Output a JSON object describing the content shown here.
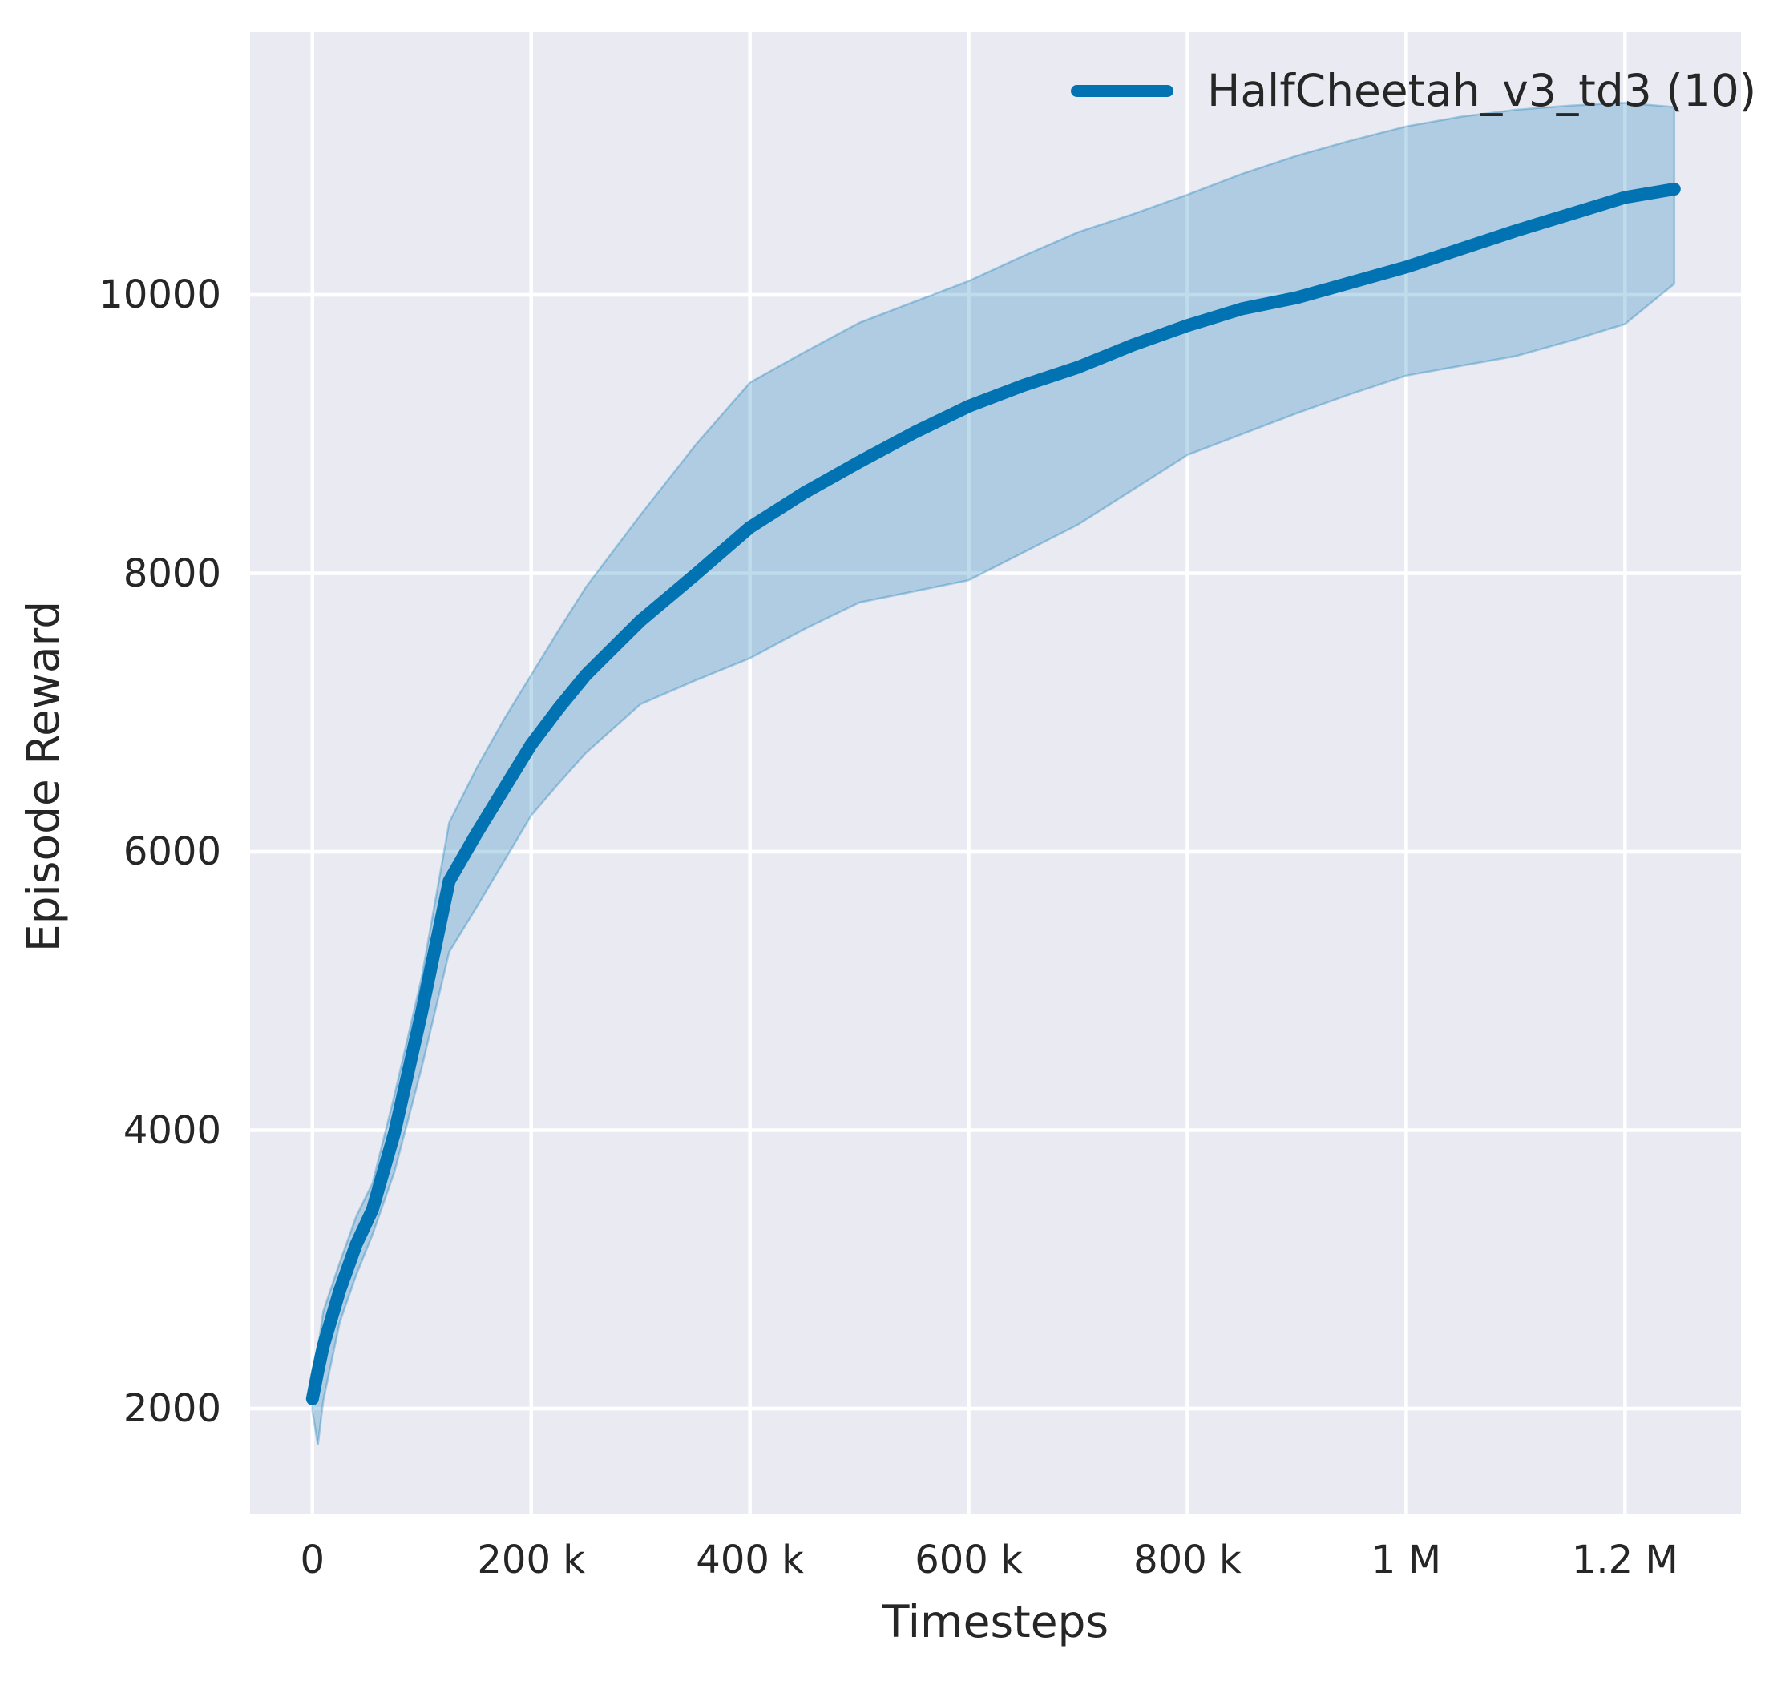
{
  "style": {
    "figure_bg": "#ffffff",
    "plot_bg": "#eaeaf2",
    "grid_color": "#ffffff",
    "text_color": "#262626",
    "line_color": "#0173b2",
    "band_fill": "rgba(1,115,178,0.25)",
    "band_edge": "rgba(1,115,178,0.30)"
  },
  "legend": {
    "label": "HalfCheetah_v3_td3 (10)"
  },
  "chart_data": {
    "type": "line",
    "title": "",
    "xlabel": "Timesteps",
    "ylabel": "Episode Reward",
    "grid": true,
    "legend_position": "upper right",
    "xlim": [
      -57000,
      1306000
    ],
    "ylim": [
      1246,
      11888
    ],
    "x_ticks": [
      {
        "value": 0,
        "label": "0"
      },
      {
        "value": 200000,
        "label": "200 k"
      },
      {
        "value": 400000,
        "label": "400 k"
      },
      {
        "value": 600000,
        "label": "600 k"
      },
      {
        "value": 800000,
        "label": "800 k"
      },
      {
        "value": 1000000,
        "label": "1 M"
      },
      {
        "value": 1200000,
        "label": "1.2 M"
      }
    ],
    "y_ticks": [
      {
        "value": 2000,
        "label": "2000"
      },
      {
        "value": 4000,
        "label": "4000"
      },
      {
        "value": 6000,
        "label": "6000"
      },
      {
        "value": 8000,
        "label": "8000"
      },
      {
        "value": 10000,
        "label": "10000"
      }
    ],
    "series": [
      {
        "name": "HalfCheetah_v3_td3 (10)",
        "color": "#0173b2",
        "x": [
          0,
          5000,
          10000,
          25000,
          40000,
          55000,
          75000,
          100000,
          125000,
          150000,
          175000,
          200000,
          225000,
          250000,
          300000,
          350000,
          400000,
          450000,
          500000,
          550000,
          600000,
          650000,
          700000,
          750000,
          800000,
          850000,
          900000,
          950000,
          1000000,
          1050000,
          1100000,
          1150000,
          1200000,
          1245000
        ],
        "mean": [
          2070,
          2270,
          2450,
          2850,
          3180,
          3430,
          3980,
          4850,
          5790,
          6130,
          6450,
          6770,
          7030,
          7270,
          7660,
          7990,
          8330,
          8580,
          8800,
          9010,
          9200,
          9350,
          9480,
          9640,
          9780,
          9900,
          9980,
          10090,
          10200,
          10330,
          10460,
          10580,
          10700,
          10760
        ],
        "band_lower": [
          1980,
          1740,
          2060,
          2620,
          2960,
          3250,
          3700,
          4450,
          5280,
          5600,
          5930,
          6260,
          6490,
          6710,
          7060,
          7230,
          7390,
          7600,
          7790,
          7870,
          7950,
          8150,
          8350,
          8600,
          8850,
          9000,
          9150,
          9290,
          9420,
          9490,
          9560,
          9670,
          9790,
          10080
        ],
        "band_upper": [
          2170,
          2430,
          2700,
          3050,
          3380,
          3620,
          4250,
          5100,
          6210,
          6600,
          6950,
          7270,
          7590,
          7900,
          8420,
          8920,
          9370,
          9590,
          9800,
          9950,
          10100,
          10280,
          10450,
          10580,
          10720,
          10870,
          11000,
          11110,
          11210,
          11280,
          11330,
          11360,
          11380,
          11350
        ]
      }
    ]
  }
}
